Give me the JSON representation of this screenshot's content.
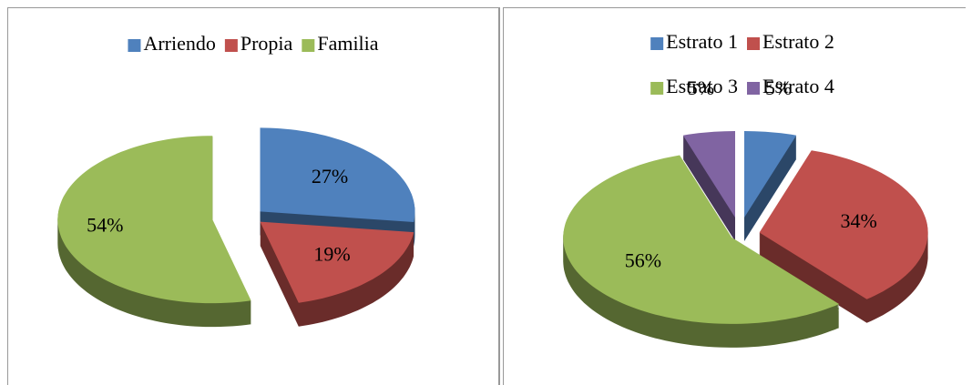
{
  "chart_data": [
    {
      "type": "pie",
      "categories": [
        "Arriendo",
        "Propia",
        "Familia"
      ],
      "values": [
        27,
        19,
        54
      ],
      "value_labels": [
        "27%",
        "19%",
        "54%"
      ],
      "colors": [
        "#4f81bd",
        "#c0504d",
        "#9bbb59"
      ],
      "legend": "top"
    },
    {
      "type": "pie",
      "categories": [
        "Estrato 1",
        "Estrato 2",
        "Estrato 3",
        "Estrato 4"
      ],
      "values": [
        5,
        34,
        56,
        5
      ],
      "value_labels": [
        "5%",
        "34%",
        "56%",
        "5%"
      ],
      "colors": [
        "#4f81bd",
        "#c0504d",
        "#9bbb59",
        "#8064a2"
      ],
      "legend": "top"
    }
  ]
}
